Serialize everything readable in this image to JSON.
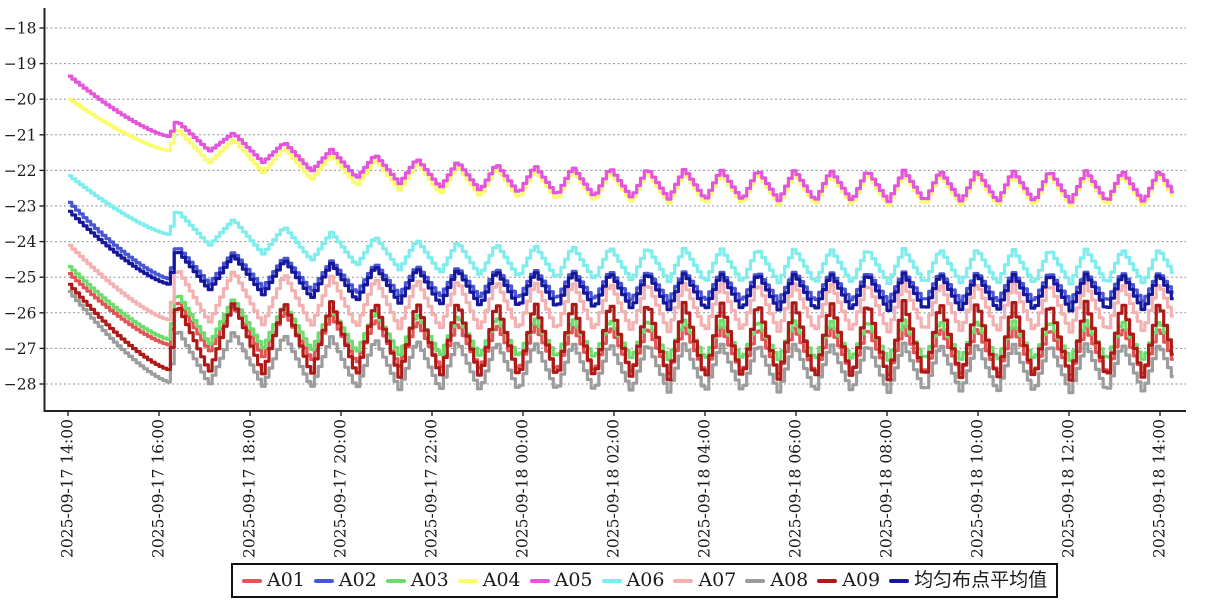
{
  "chart_data": {
    "type": "line",
    "title": "",
    "x_axis": {
      "tick_labels": [
        "2025-09-17 14:00",
        "2025-09-17 16:00",
        "2025-09-17 18:00",
        "2025-09-17 20:00",
        "2025-09-17 22:00",
        "2025-09-18 00:00",
        "2025-09-18 02:00",
        "2025-09-18 04:00",
        "2025-09-18 06:00",
        "2025-09-18 08:00",
        "2025-09-18 10:00",
        "2025-09-18 12:00",
        "2025-09-18 14:00"
      ],
      "tick_hours": [
        0,
        2,
        4,
        6,
        8,
        10,
        12,
        14,
        16,
        18,
        20,
        22,
        24
      ],
      "span_hours": 24.3
    },
    "y_axis": {
      "tick_values": [
        -18,
        -19,
        -20,
        -21,
        -22,
        -23,
        -24,
        -25,
        -26,
        -27,
        -28
      ],
      "tick_labels": [
        "−18",
        "−19",
        "−20",
        "−21",
        "−22",
        "−23",
        "−24",
        "−25",
        "−26",
        "−27",
        "−28"
      ],
      "range": [
        -28.76,
        -17.44
      ]
    },
    "grid": "horizontal-dashed",
    "legend_position": "bottom-center",
    "sampling_minutes": 5,
    "pattern": "initial exponential pull-down for ~2.2 h, then repeating ~50-minute sawtooth cycles whose peak/trough envelopes settle to steady values",
    "series": [
      {
        "name": "A01",
        "color": "#e15555",
        "start": -24.9,
        "first_trough": -26.9,
        "first_peak": -25.6,
        "steady_peak": -26.4,
        "steady_trough": -27.75
      },
      {
        "name": "A02",
        "color": "#4956d4",
        "start": -22.9,
        "first_trough": -25.05,
        "first_peak": -24.1,
        "steady_peak": -24.85,
        "steady_trough": -25.7
      },
      {
        "name": "A03",
        "color": "#6cdd6c",
        "start": -24.7,
        "first_trough": -26.75,
        "first_peak": -25.4,
        "steady_peak": -26.2,
        "steady_trough": -27.35
      },
      {
        "name": "A04",
        "color": "#fbfb6e",
        "start": -20.0,
        "first_trough": -21.45,
        "first_peak": -20.8,
        "steady_peak": -22.1,
        "steady_trough": -23.0
      },
      {
        "name": "A05",
        "color": "#e454dd",
        "start": -19.35,
        "first_trough": -21.05,
        "first_peak": -20.6,
        "steady_peak": -22.0,
        "steady_trough": -22.9
      },
      {
        "name": "A06",
        "color": "#80eded",
        "start": -22.15,
        "first_trough": -23.8,
        "first_peak": -23.1,
        "steady_peak": -24.2,
        "steady_trough": -25.2
      },
      {
        "name": "A07",
        "color": "#f3b1b1",
        "start": -24.1,
        "first_trough": -26.2,
        "first_peak": -24.7,
        "steady_peak": -25.15,
        "steady_trough": -26.55
      },
      {
        "name": "A08",
        "color": "#9c9c9c",
        "start": -25.4,
        "first_trough": -27.95,
        "first_peak": -26.4,
        "steady_peak": -26.85,
        "steady_trough": -28.25
      },
      {
        "name": "A09",
        "color": "#ae1a17",
        "start": -25.2,
        "first_trough": -27.6,
        "first_peak": -25.7,
        "steady_peak": -25.65,
        "steady_trough": -27.9
      },
      {
        "name": "均匀布点平均值",
        "color": "#17179b",
        "start": -23.15,
        "first_trough": -25.2,
        "first_peak": -24.2,
        "steady_peak": -24.9,
        "steady_trough": -25.95
      }
    ],
    "model": {
      "first_trough_time": 2.2,
      "first_peak_time": 2.35,
      "cycle_base_hours": 0.8,
      "cycle_extra_hours": 0.45,
      "cycle_settle_tau": 3,
      "fall_fraction": 0.58,
      "peak_settle_tau": 3.5,
      "trough_settle_tau": 4,
      "initial_curve_power": 1.35,
      "sample_step_hours": 0.08333,
      "t_end": 24.3
    }
  },
  "colors": {
    "background": "#ffffff",
    "axis": "#222222",
    "grid": "#909090",
    "tick_text": "#1a1a1a",
    "legend_border": "#111111"
  }
}
